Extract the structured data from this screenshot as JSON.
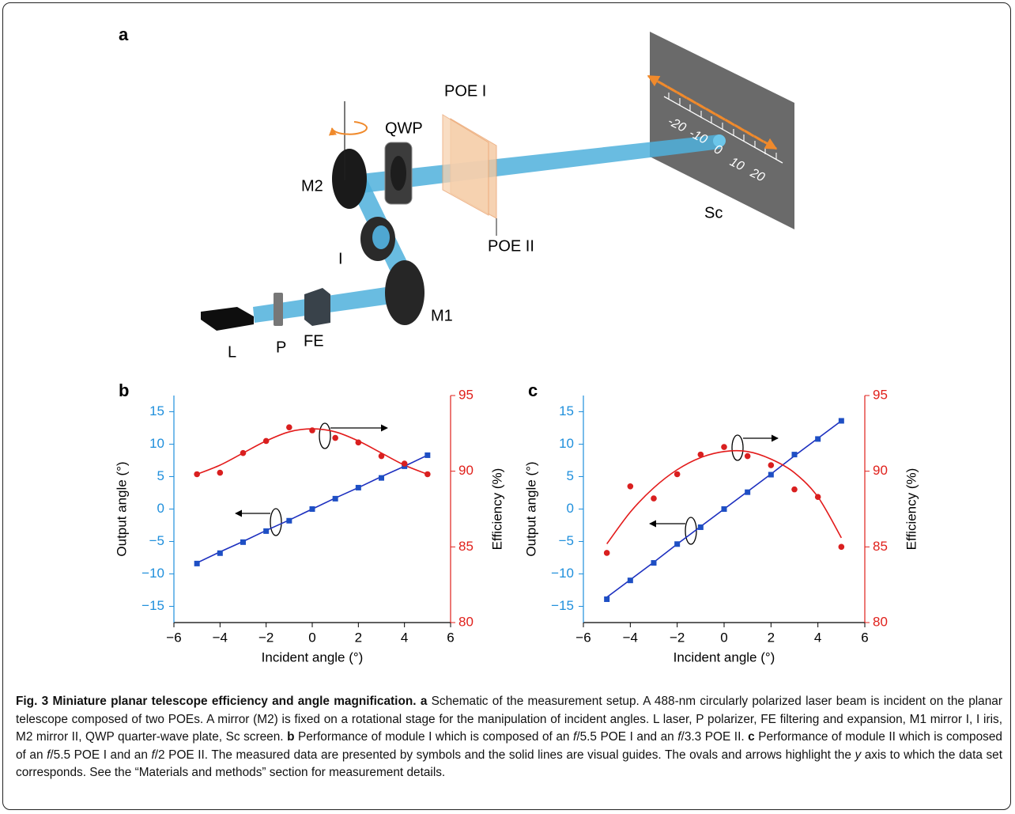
{
  "panel_a": {
    "label": "a",
    "poe1": "POE I",
    "qwp": "QWP",
    "m2": "M2",
    "sc": "Sc",
    "poe2": "POE II",
    "iris": "I",
    "m1": "M1",
    "laser": "L",
    "pol": "P",
    "fe": "FE",
    "screen_ticks": [
      -20,
      -10,
      0,
      10,
      20
    ]
  },
  "chart_data": [
    {
      "type": "line",
      "label": "b",
      "xlabel": "Incident angle (°)",
      "ylabel": "Output angle (°)",
      "y2label": "Efficiency (%)",
      "x": [
        -5,
        -4,
        -3,
        -2,
        -1,
        0,
        1,
        2,
        3,
        4,
        5
      ],
      "series": [
        {
          "color": "#1c2fbf",
          "mode": "line",
          "values": [
            -8.3,
            -6.6,
            -5.0,
            -3.3,
            -1.7,
            0,
            1.7,
            3.3,
            5.0,
            6.6,
            8.3
          ]
        },
        {
          "color": "#e31a1a",
          "mode": "line",
          "smooth": true,
          "axis": "y2",
          "values": [
            89.8,
            90.4,
            91.2,
            92.0,
            92.6,
            92.8,
            92.6,
            92.0,
            91.2,
            90.4,
            89.8
          ]
        },
        {
          "color": "#1e4fc4",
          "mode": "markers",
          "marker": "square",
          "values": [
            -8.4,
            -6.8,
            -5.1,
            -3.4,
            -1.8,
            0,
            1.6,
            3.3,
            4.8,
            6.6,
            8.3
          ]
        },
        {
          "color": "#d91f1f",
          "mode": "markers",
          "marker": "circle",
          "axis": "y2",
          "values": [
            89.8,
            89.9,
            91.2,
            92.0,
            92.9,
            92.7,
            92.2,
            91.9,
            91.0,
            90.5,
            89.8
          ]
        }
      ],
      "xlim": [
        -6,
        6
      ],
      "xticks": [
        {
          "value": -6,
          "label": "−6"
        },
        {
          "value": -4,
          "label": "−4"
        },
        {
          "value": -2,
          "label": "−2"
        },
        0,
        2,
        4,
        6
      ],
      "ylim": [
        -17.5,
        17.5
      ],
      "yticks": [
        {
          "value": -15,
          "label": "−15"
        },
        {
          "value": -10,
          "label": "−10"
        },
        {
          "value": -5,
          "label": "−5"
        },
        0,
        5,
        10,
        15
      ],
      "y2lim": [
        80,
        95
      ],
      "y2ticks": [
        80,
        85,
        90,
        95
      ],
      "ycolor": "#1f8fdc",
      "y2color": "#e0201b"
    },
    {
      "type": "line",
      "label": "c",
      "xlabel": "Incident angle (°)",
      "ylabel": "Output angle (°)",
      "y2label": "Efficiency (%)",
      "x": [
        -5,
        -4,
        -3,
        -2,
        -1,
        0,
        1,
        2,
        3,
        4,
        5
      ],
      "series": [
        {
          "color": "#1c2fbf",
          "mode": "line",
          "values": [
            -13.6,
            -10.9,
            -8.2,
            -5.4,
            -2.7,
            0,
            2.7,
            5.4,
            8.2,
            10.9,
            13.6
          ]
        },
        {
          "color": "#e31a1a",
          "mode": "line",
          "smooth": true,
          "axis": "y2",
          "values": [
            85.2,
            87.3,
            88.9,
            90.1,
            90.9,
            91.3,
            91.3,
            90.8,
            89.9,
            88.3,
            85.6
          ]
        },
        {
          "color": "#1e4fc4",
          "mode": "markers",
          "marker": "square",
          "values": [
            -13.9,
            -11.0,
            -8.3,
            -5.4,
            -2.8,
            0,
            2.6,
            5.3,
            8.4,
            10.8,
            13.6
          ]
        },
        {
          "color": "#d91f1f",
          "mode": "markers",
          "marker": "circle",
          "axis": "y2",
          "values": [
            84.6,
            89.0,
            88.2,
            89.8,
            91.1,
            91.6,
            91.0,
            90.4,
            88.8,
            88.3,
            85.0
          ]
        }
      ],
      "xlim": [
        -6,
        6
      ],
      "xticks": [
        {
          "value": -6,
          "label": "−6"
        },
        {
          "value": -4,
          "label": "−4"
        },
        {
          "value": -2,
          "label": "−2"
        },
        0,
        2,
        4,
        6
      ],
      "ylim": [
        -17.5,
        17.5
      ],
      "yticks": [
        {
          "value": -15,
          "label": "−15"
        },
        {
          "value": -10,
          "label": "−10"
        },
        {
          "value": -5,
          "label": "−5"
        },
        0,
        5,
        10,
        15
      ],
      "y2lim": [
        80,
        95
      ],
      "y2ticks": [
        80,
        85,
        90,
        95
      ],
      "ycolor": "#1f8fdc",
      "y2color": "#e0201b"
    }
  ],
  "caption": {
    "runs": [
      {
        "text": "Fig. 3 Miniature planar telescope efficiency and angle magnification.",
        "style": "bold"
      },
      {
        "text": " a",
        "style": "bold"
      },
      {
        "text": " Schematic of the measurement setup. A 488-nm circularly polarized laser beam is incident on the planar telescope composed of two POEs. A mirror (M2) is fixed on a rotational stage for the manipulation of incident angles. L laser, P polarizer, FE filtering and expansion, M1 mirror I, I iris, M2 mirror II, QWP quarter-wave plate, Sc screen. "
      },
      {
        "text": "b",
        "style": "bold"
      },
      {
        "text": " Performance of module I which is composed of an "
      },
      {
        "text": "f",
        "style": "italic"
      },
      {
        "text": "/5.5 POE I and an "
      },
      {
        "text": "f",
        "style": "italic"
      },
      {
        "text": "/3.3 POE II. "
      },
      {
        "text": "c",
        "style": "bold"
      },
      {
        "text": " Performance of module II which is composed of an "
      },
      {
        "text": "f",
        "style": "italic"
      },
      {
        "text": "/5.5 POE I and an "
      },
      {
        "text": "f",
        "style": "italic"
      },
      {
        "text": "/2 POE II. The measured data are presented by symbols and the solid lines are visual guides. The ovals and arrows highlight the "
      },
      {
        "text": "y",
        "style": "italic"
      },
      {
        "text": " axis to which the data set corresponds. See the “Materials and methods” section for measurement details."
      }
    ]
  }
}
